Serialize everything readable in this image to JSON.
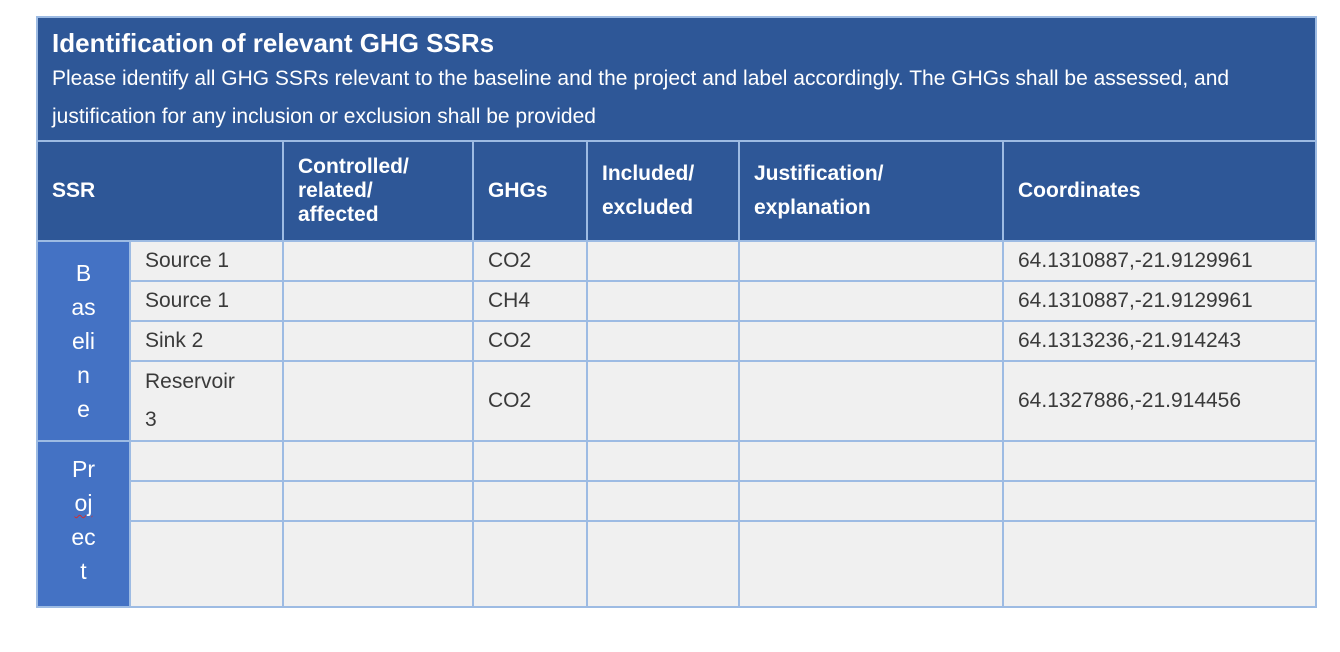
{
  "banner": {
    "title": "Identification of relevant GHG SSRs",
    "description": "Please identify all GHG SSRs relevant to the baseline and the project and label accordingly. The GHGs shall be assessed, and justification for any inclusion or exclusion shall be provided"
  },
  "columns": {
    "ssr": "SSR",
    "controlled_l1": "Controlled/",
    "controlled_l2": "related/",
    "controlled_l3": "affected",
    "ghgs": "GHGs",
    "included_l1": "Included/",
    "included_l2": "excluded",
    "justification_l1": "Justification/",
    "justification_l2": "explanation",
    "coordinates": "Coordinates"
  },
  "groups": {
    "baseline": [
      "B",
      "as",
      "eli",
      "n",
      "e"
    ],
    "project": [
      "Pr",
      "oj",
      "ec",
      "t"
    ]
  },
  "baseline_rows": [
    {
      "ssr": "Source 1",
      "controlled": "",
      "ghg": "CO2",
      "included": "",
      "justification": "",
      "coordinates": "64.1310887,-21.9129961"
    },
    {
      "ssr": "Source 1",
      "controlled": "",
      "ghg": "CH4",
      "included": "",
      "justification": "",
      "coordinates": "64.1310887,-21.9129961"
    },
    {
      "ssr": "Sink 2",
      "controlled": "",
      "ghg": "CO2",
      "included": "",
      "justification": "",
      "coordinates": "64.1313236,-21.914243"
    },
    {
      "ssr_l1": "Reservoir",
      "ssr_l2": "3",
      "controlled": "",
      "ghg": "CO2",
      "included": "",
      "justification": "",
      "coordinates": "64.1327886,-21.914456"
    }
  ],
  "project_rows": [
    {
      "ssr": "",
      "controlled": "",
      "ghg": "",
      "included": "",
      "justification": "",
      "coordinates": ""
    },
    {
      "ssr": "",
      "controlled": "",
      "ghg": "",
      "included": "",
      "justification": "",
      "coordinates": ""
    },
    {
      "ssr": "",
      "controlled": "",
      "ghg": "",
      "included": "",
      "justification": "",
      "coordinates": ""
    }
  ],
  "colors": {
    "header_bg": "#2e5797",
    "group_bg": "#4472c4",
    "cell_bg": "#f0f0f0",
    "border": "#9dbbe3"
  }
}
